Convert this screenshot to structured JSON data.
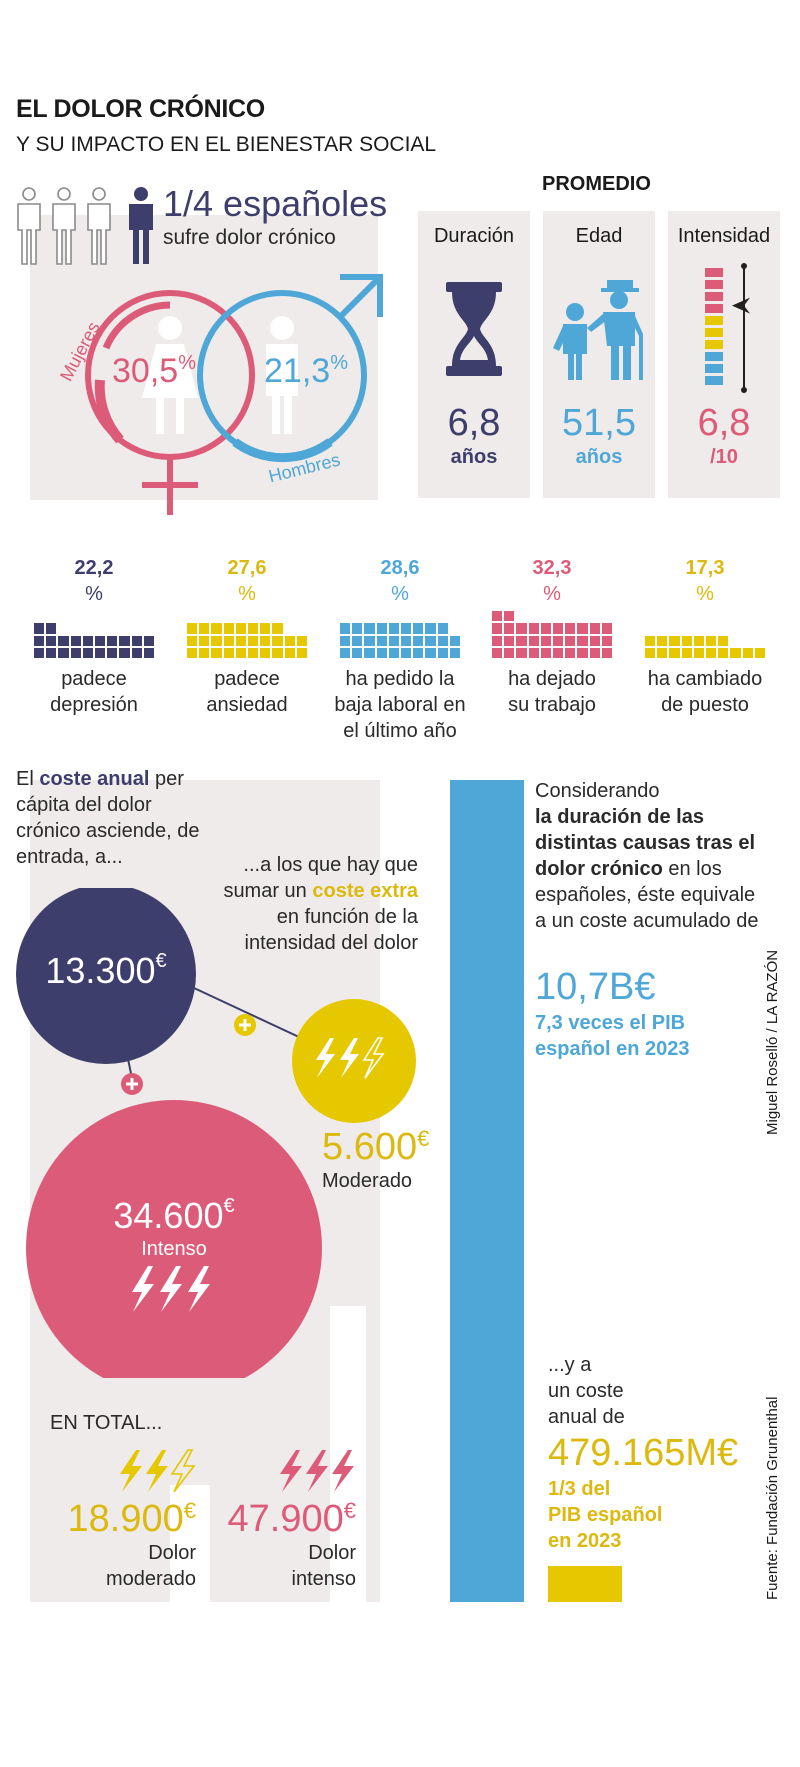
{
  "header": {
    "title": "EL DOLOR CRÓNICO",
    "subtitle": "Y SU IMPACTO EN EL BIENESTAR SOCIAL"
  },
  "prevalence": {
    "fraction": "1/4 españoles",
    "caption": "sufre dolor crónico",
    "women_label": "Mujeres",
    "women_value": "30,5",
    "women_unit": "%",
    "men_label": "Hombres",
    "men_value": "21,3",
    "men_unit": "%"
  },
  "averages": {
    "heading": "PROMEDIO",
    "duration": {
      "label": "Duración",
      "value": "6,8",
      "unit": "años"
    },
    "age": {
      "label": "Edad",
      "value": "51,5",
      "unit": "años"
    },
    "intensity": {
      "label": "Intensidad",
      "value": "6,8",
      "unit": "/10",
      "scale_fraction": 0.68
    }
  },
  "effects": [
    {
      "value": "22,2",
      "unit": "%",
      "percent": 22.2,
      "label": "padece\ndepresión",
      "color": "#3d3e6b"
    },
    {
      "value": "27,6",
      "unit": "%",
      "percent": 27.6,
      "label": "padece\nansiedad",
      "color": "#e6c800"
    },
    {
      "value": "28,6",
      "unit": "%",
      "percent": 28.6,
      "label": "ha pedido la\nbaja laboral en\nel último año",
      "color": "#4ea7d6"
    },
    {
      "value": "32,3",
      "unit": "%",
      "percent": 32.3,
      "label": "ha dejado\nsu trabajo",
      "color": "#dc5b78"
    },
    {
      "value": "17,3",
      "unit": "%",
      "percent": 17.3,
      "label": "ha cambiado\nde puesto",
      "color": "#e6c800"
    }
  ],
  "costs": {
    "intro_pre": "El ",
    "intro_bold": "coste anual",
    "intro_post": " per cápita del dolor crónico asciende, de entrada, a...",
    "extra_pre": "...a los que hay que sumar un ",
    "extra_bold": "coste extra",
    "extra_post": " en función de la intensidad del dolor",
    "base": "13.300",
    "base_unit": "€",
    "moderate": "5.600",
    "moderate_unit": "€",
    "moderate_label": "Moderado",
    "intense": "34.600",
    "intense_unit": "€",
    "intense_label": "Intenso",
    "total_heading": "EN TOTAL...",
    "total_moderate": "18.900",
    "total_moderate_unit": "€",
    "total_moderate_label": "Dolor\nmoderado",
    "total_intense": "47.900",
    "total_intense_unit": "€",
    "total_intense_label": "Dolor\nintenso",
    "plus": "+"
  },
  "accumulated": {
    "lead": "Considerando",
    "bold": "la duración de las distintas causas tras el dolor crónico",
    "rest": " en los españoles, éste equivale a un coste acumulado de",
    "value": "10,7",
    "value_unit": "B€",
    "pib_bold": "7,3 veces",
    "pib_rest": " el PIB español en 2023"
  },
  "annual": {
    "lead": "...y a\nun coste\nanual de",
    "value": "479.165",
    "value_unit": "M€",
    "pib": "1/3 del\nPIB español\nen 2023"
  },
  "credits": {
    "author": "Miguel Roselló / LA RAZÓN",
    "source": "Fuente: Fundación Grunenthal"
  },
  "colors": {
    "navy": "#3d3e6b",
    "blue": "#4ea7d6",
    "pink": "#dc5b78",
    "yellow": "#e6c800",
    "panel": "#efebea"
  },
  "icons": [
    "person-icon",
    "female-symbol-icon",
    "male-symbol-icon",
    "hourglass-icon",
    "grandfather-child-icon",
    "intensity-scale-icon",
    "lightning-bolt-icon"
  ]
}
